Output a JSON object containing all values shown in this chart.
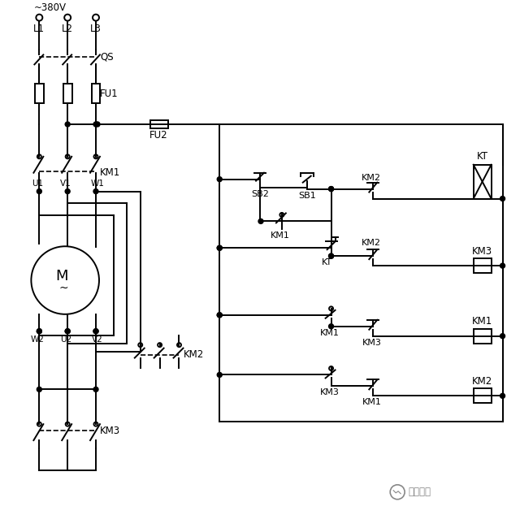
{
  "bg_color": "#ffffff",
  "figsize": [
    6.4,
    6.34
  ],
  "dpi": 100,
  "labels": {
    "voltage": "~380V",
    "L1": "L1",
    "L2": "L2",
    "L3": "L3",
    "QS": "QS",
    "FU1": "FU1",
    "FU2": "FU2",
    "SB2": "SB2",
    "SB1": "SB1",
    "KM1": "KM1",
    "KM2": "KM2",
    "KM3": "KM3",
    "KT": "KT",
    "U1": "U1",
    "V1": "V1",
    "W1": "W1",
    "U2": "U2",
    "V2": "V2",
    "W2": "W2",
    "M": "M",
    "watermark": "技成培训"
  },
  "lw": 1.4
}
